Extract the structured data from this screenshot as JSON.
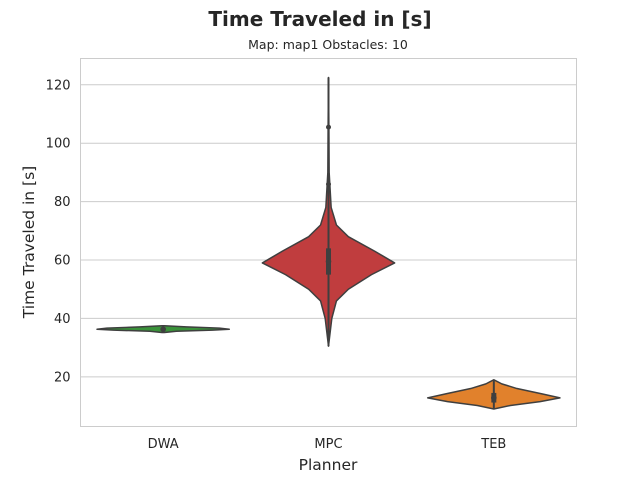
{
  "chart_data": {
    "type": "violin",
    "title": "Time Traveled in [s]",
    "subtitle": "Map: map1 Obstacles: 10",
    "xlabel": "Planner",
    "ylabel": "Time Traveled in [s]",
    "ylim": [
      3,
      129
    ],
    "yticks": [
      20,
      40,
      60,
      80,
      100,
      120
    ],
    "grid": true,
    "categories": [
      "DWA",
      "MPC",
      "TEB"
    ],
    "colors": {
      "DWA": "#3a923a",
      "MPC": "#c03d3e",
      "TEB": "#e1812c"
    },
    "series": [
      {
        "category": "DWA",
        "min": 35.0,
        "q1": 36.0,
        "median": 36.3,
        "q3": 36.8,
        "max": 37.5,
        "density": [
          [
            35.2,
            0.02
          ],
          [
            35.6,
            0.2
          ],
          [
            36.0,
            0.75
          ],
          [
            36.3,
            1.0
          ],
          [
            36.7,
            0.85
          ],
          [
            37.1,
            0.35
          ],
          [
            37.5,
            0.02
          ]
        ]
      },
      {
        "category": "MPC",
        "min": 30.5,
        "q1": 55.0,
        "median": 59.5,
        "q3": 64.0,
        "max": 122.5,
        "outliers": [
          86,
          105.5
        ],
        "density": [
          [
            30.5,
            0.0
          ],
          [
            40,
            0.05
          ],
          [
            46,
            0.12
          ],
          [
            50,
            0.3
          ],
          [
            55,
            0.65
          ],
          [
            59,
            1.0
          ],
          [
            63,
            0.7
          ],
          [
            68,
            0.3
          ],
          [
            72,
            0.12
          ],
          [
            78,
            0.04
          ],
          [
            90,
            0.01
          ],
          [
            105,
            0.006
          ],
          [
            122.5,
            0.0
          ]
        ]
      },
      {
        "category": "TEB",
        "min": 9.0,
        "q1": 11.2,
        "median": 12.8,
        "q3": 14.5,
        "max": 19.0,
        "density": [
          [
            9.0,
            0.0
          ],
          [
            10.2,
            0.25
          ],
          [
            11.5,
            0.7
          ],
          [
            12.8,
            1.0
          ],
          [
            14.2,
            0.72
          ],
          [
            16,
            0.35
          ],
          [
            17.6,
            0.12
          ],
          [
            19.0,
            0.0
          ]
        ]
      }
    ]
  }
}
